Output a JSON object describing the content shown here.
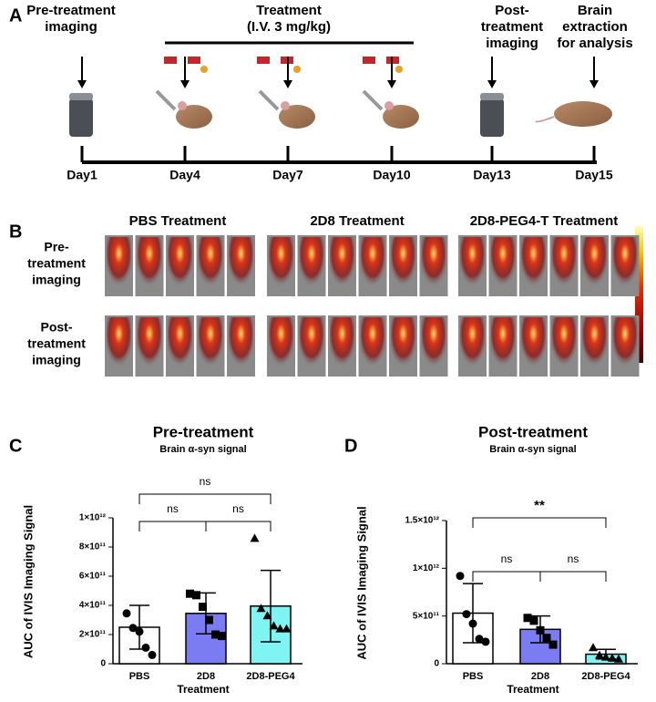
{
  "panels": [
    "A",
    "B",
    "C",
    "D"
  ],
  "timeline": {
    "steps": [
      [
        "Pre-treatment",
        "imaging"
      ],
      [
        "Treatment",
        "(I.V. 3 mg/kg)"
      ],
      [
        "Post-",
        "treatment",
        "imaging"
      ],
      [
        "Brain",
        "extraction",
        "for analysis"
      ]
    ],
    "days": [
      "Day1",
      "Day4",
      "Day7",
      "Day10",
      "Day13",
      "Day15"
    ]
  },
  "imaging": {
    "groups": [
      "PBS Treatment",
      "2D8 Treatment",
      "2D8-PEG4-T Treatment"
    ],
    "rows": [
      [
        "Pre-",
        "treatment",
        "imaging"
      ],
      [
        "Post-",
        "treatment",
        "imaging"
      ]
    ]
  },
  "chart_data": [
    {
      "type": "bar",
      "title": "Pre-treatment",
      "subtitle": "Brain α-syn signal",
      "ylabel": "AUC of IVIS Imaging Signal",
      "xlabel": "Treatment",
      "categories": [
        "PBS",
        "2D8",
        "2D8-PEG4"
      ],
      "values": [
        250000000000,
        345000000000,
        395000000000
      ],
      "errors": [
        150000000000,
        140000000000,
        245000000000
      ],
      "points": [
        [
          345000000000,
          245000000000,
          220000000000,
          110000000000,
          60000000000
        ],
        [
          480000000000,
          470000000000,
          390000000000,
          300000000000,
          200000000000,
          190000000000
        ],
        [
          860000000000,
          380000000000,
          330000000000,
          260000000000,
          240000000000,
          240000000000
        ]
      ],
      "colors": [
        "#ffffff",
        "#7b7cf2",
        "#7ff4f2"
      ],
      "markers": [
        "circle",
        "square",
        "triangle"
      ],
      "significance": [
        "ns",
        "ns",
        "ns"
      ],
      "ylim": [
        0,
        1000000000000
      ],
      "yticks": [
        0,
        {
          "value": 200000000000,
          "label": "2×10¹¹"
        },
        {
          "value": 400000000000,
          "label": "4×10¹¹"
        },
        {
          "value": 600000000000,
          "label": "6×10¹¹"
        },
        {
          "value": 800000000000,
          "label": "8×10¹¹"
        },
        {
          "value": 1000000000000,
          "label": "1×10¹²"
        }
      ]
    },
    {
      "type": "bar",
      "title": "Post-treatment",
      "subtitle": "Brain α-syn signal",
      "ylabel": "AUC of IVIS Imaging Signal",
      "xlabel": "Treatment",
      "categories": [
        "PBS",
        "2D8",
        "2D8-PEG4"
      ],
      "values": [
        530000000000,
        360000000000,
        100000000000
      ],
      "errors": [
        310000000000,
        140000000000,
        50000000000
      ],
      "points": [
        [
          920000000000,
          520000000000,
          420000000000,
          260000000000,
          230000000000
        ],
        [
          480000000000,
          450000000000,
          350000000000,
          270000000000,
          200000000000
        ],
        [
          170000000000,
          90000000000,
          70000000000,
          60000000000,
          50000000000
        ]
      ],
      "colors": [
        "#ffffff",
        "#7b7cf2",
        "#7ff4f2"
      ],
      "markers": [
        "circle",
        "square",
        "triangle"
      ],
      "significance": [
        "ns",
        "ns",
        "**"
      ],
      "ylim": [
        0,
        1500000000000
      ],
      "yticks": [
        0,
        {
          "value": 500000000000,
          "label": "5×10¹¹"
        },
        {
          "value": 1000000000000,
          "label": "1×10¹²"
        },
        {
          "value": 1500000000000,
          "label": "1.5×10¹²"
        }
      ]
    }
  ]
}
